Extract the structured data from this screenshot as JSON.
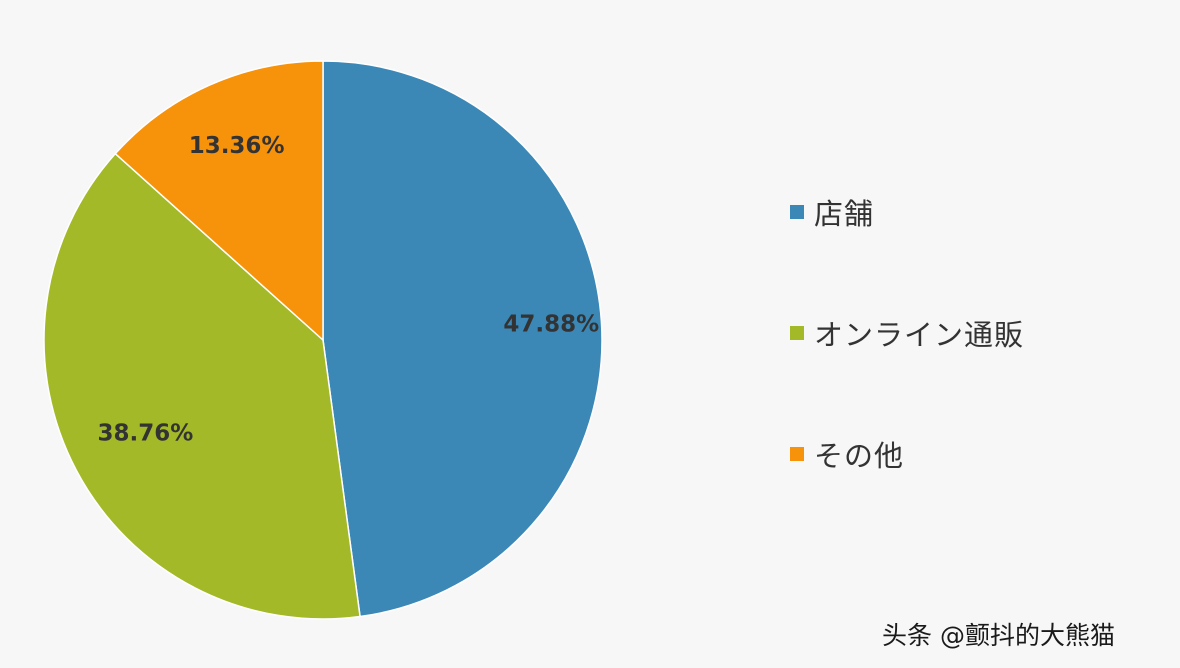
{
  "chart_data": {
    "type": "pie",
    "title": "",
    "slices": [
      {
        "label": "店舗",
        "value": 47.88,
        "value_label": "47.88%",
        "color": "#3b88b7"
      },
      {
        "label": "オンライン通販",
        "value": 38.76,
        "value_label": "38.76%",
        "color": "#a4b927"
      },
      {
        "label": "その他",
        "value": 13.36,
        "value_label": "13.36%",
        "color": "#f7920b"
      }
    ],
    "start": "12 o'clock",
    "direction": "clockwise",
    "legend_position": "right"
  },
  "legend": {
    "items": [
      {
        "label": "店舗",
        "color": "#3b88b7"
      },
      {
        "label": "オンライン通販",
        "color": "#a4b927"
      },
      {
        "label": "その他",
        "color": "#f7920b"
      }
    ]
  },
  "watermark": "头条 @颤抖的大熊猫"
}
